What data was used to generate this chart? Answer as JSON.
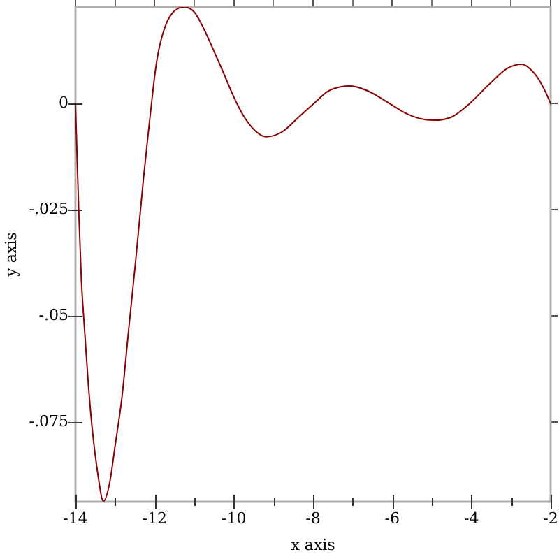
{
  "chart_data": {
    "type": "line",
    "xlabel": "x axis",
    "ylabel": "y axis",
    "x": [
      -14,
      -13.918,
      -13.852,
      -13.795,
      -13.68,
      -13.594,
      -13.435,
      -13.294,
      -13.14,
      -13.0,
      -12.82,
      -12.67,
      -12.48,
      -12.29,
      -12.18,
      -12.08,
      -11.98,
      -11.88,
      -11.71,
      -11.53,
      -11.26,
      -11.0,
      -10.76,
      -10.55,
      -10.29,
      -10.04,
      -9.92,
      -9.74,
      -9.47,
      -9.18,
      -8.95,
      -8.73,
      -8.38,
      -8.02,
      -7.61,
      -7.3,
      -7.08,
      -6.61,
      -6.06,
      -5.67,
      -5.3,
      -4.96,
      -4.49,
      -4.05,
      -3.55,
      -3.08,
      -2.73,
      -2.38,
      -2.14,
      -2
    ],
    "series": [
      {
        "color": "#8b0000",
        "values": [
          0,
          -0.025,
          -0.0414,
          -0.05,
          -0.0655,
          -0.075,
          -0.0873,
          -0.0937,
          -0.0895,
          -0.0807,
          -0.0687,
          -0.0545,
          -0.037,
          -0.0184,
          -0.0085,
          0,
          0.0079,
          0.0134,
          0.0188,
          0.0216,
          0.0228,
          0.0216,
          0.0177,
          0.0134,
          0.0079,
          0.0024,
          0,
          -0.0031,
          -0.0063,
          -0.0078,
          -0.0074,
          -0.0063,
          -0.0033,
          -0.0003,
          0.003,
          0.004,
          0.0042,
          0.003,
          0,
          -0.0022,
          -0.0035,
          -0.0039,
          -0.0031,
          0,
          0.0046,
          0.0084,
          0.0093,
          0.0068,
          0.003,
          0
        ]
      }
    ],
    "xlim": [
      -14,
      -2
    ],
    "ylim": [
      -0.0938,
      0.0228
    ],
    "xticks": [
      -14,
      {
        "value": -13,
        "label": null
      },
      -12,
      {
        "value": -11,
        "label": null
      },
      -10,
      {
        "value": -9,
        "label": null
      },
      -8,
      {
        "value": -7,
        "label": null
      },
      -6,
      {
        "value": -5,
        "label": null
      },
      -4,
      {
        "value": -3,
        "label": null
      },
      -2
    ],
    "yticks": [
      {
        "value": -0.075,
        "label": "-.075"
      },
      {
        "value": -0.05,
        "label": "-.05"
      },
      {
        "value": -0.025,
        "label": "-.025"
      },
      0
    ],
    "grid": false,
    "legend": false
  }
}
